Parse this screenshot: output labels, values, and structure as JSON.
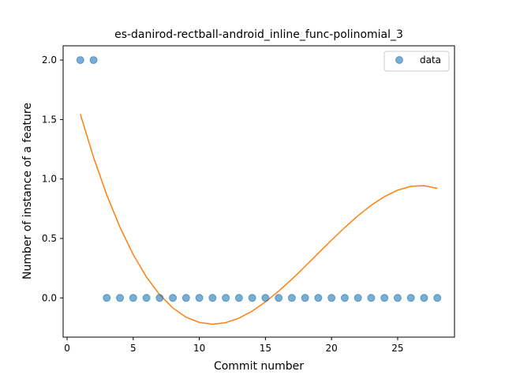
{
  "chart_data": {
    "type": "scatter",
    "title": "es-danirod-rectball-android_inline_func-polinomial_3",
    "xlabel": "Commit number",
    "ylabel": "Number of instance of a feature",
    "xlim": [
      -0.3,
      29.3
    ],
    "ylim": [
      -0.33,
      2.12
    ],
    "xticks": [
      0,
      5,
      10,
      15,
      20,
      25
    ],
    "yticks": [
      0.0,
      0.5,
      1.0,
      1.5,
      2.0
    ],
    "ytick_labels": [
      "0.0",
      "0.5",
      "1.0",
      "1.5",
      "2.0"
    ],
    "grid": false,
    "legend": {
      "position": "top-right",
      "entries": [
        "data"
      ]
    },
    "colors": {
      "scatter": "#1f77b4",
      "fit": "#ff7f0e"
    },
    "series": [
      {
        "name": "data",
        "kind": "scatter",
        "x": [
          1,
          2,
          3,
          4,
          5,
          6,
          7,
          8,
          9,
          10,
          11,
          12,
          13,
          14,
          15,
          16,
          17,
          18,
          19,
          20,
          21,
          22,
          23,
          24,
          25,
          26,
          27,
          28
        ],
        "y": [
          2,
          2,
          0,
          0,
          0,
          0,
          0,
          0,
          0,
          0,
          0,
          0,
          0,
          0,
          0,
          0,
          0,
          0,
          0,
          0,
          0,
          0,
          0,
          0,
          0,
          0,
          0,
          0
        ]
      },
      {
        "kind": "line",
        "x": [
          1,
          2,
          3,
          4,
          5,
          6,
          7,
          8,
          9,
          10,
          11,
          12,
          13,
          14,
          15,
          16,
          17,
          18,
          19,
          20,
          21,
          22,
          23,
          24,
          25,
          26,
          27,
          28
        ],
        "y": [
          1.546,
          1.183,
          0.866,
          0.594,
          0.365,
          0.176,
          0.027,
          -0.085,
          -0.162,
          -0.206,
          -0.221,
          -0.208,
          -0.17,
          -0.111,
          -0.034,
          0.057,
          0.157,
          0.265,
          0.376,
          0.486,
          0.592,
          0.691,
          0.779,
          0.852,
          0.906,
          0.938,
          0.944,
          0.921
        ]
      }
    ]
  }
}
